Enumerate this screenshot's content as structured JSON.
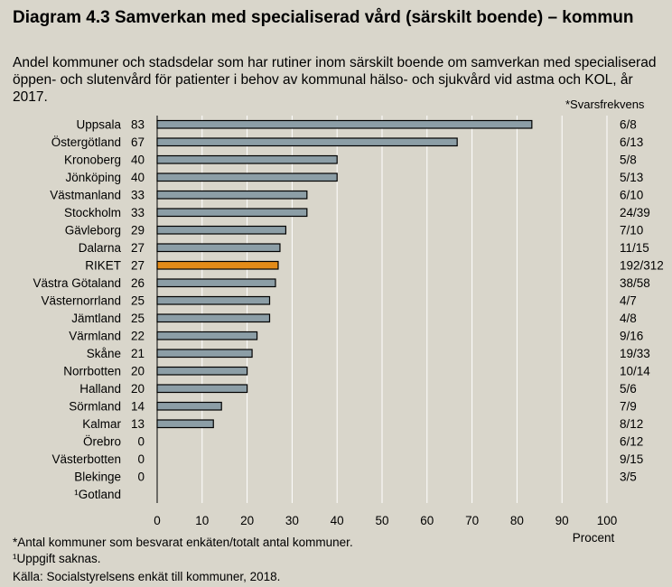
{
  "title": "Diagram 4.3 Samverkan med specialiserad vård (särskilt boende) – kommun",
  "subtitle": "Andel kommuner och stadsdelar som har rutiner inom särskilt boende om samverkan med specialiserad öppen- och slutenvård för patienter i behov av kommunal hälso- och sjukvård vid astma och KOL, år 2017.",
  "freq_header": "*Svarsfrekvens",
  "footnotes": {
    "note1": "*Antal kommuner som besvarat enkäten/totalt antal kommuner.",
    "note2": "¹Uppgift saknas.",
    "source": "Källa:  Socialstyrelsens enkät till kommuner, 2018."
  },
  "colors": {
    "bar": "#8c9ea6",
    "highlight": "#e38b18",
    "background": "#d9d6cb"
  },
  "chart_data": {
    "type": "bar",
    "orientation": "horizontal",
    "xlabel": "Procent",
    "xlim": [
      0,
      100
    ],
    "xticks": [
      0,
      10,
      20,
      30,
      40,
      50,
      60,
      70,
      80,
      90,
      100
    ],
    "grid": true,
    "highlight_category": "RIKET",
    "categories": [
      "Uppsala",
      "Östergötland",
      "Kronoberg",
      "Jönköping",
      "Västmanland",
      "Stockholm",
      "Gävleborg",
      "Dalarna",
      "RIKET",
      "Västra Götaland",
      "Västernorrland",
      "Jämtland",
      "Värmland",
      "Skåne",
      "Norrbotten",
      "Halland",
      "Sörmland",
      "Kalmar",
      "Örebro",
      "Västerbotten",
      "Blekinge",
      "¹Gotland"
    ],
    "value_labels": [
      "83",
      "67",
      "40",
      "40",
      "33",
      "33",
      "29",
      "27",
      "27",
      "26",
      "25",
      "25",
      "22",
      "21",
      "20",
      "20",
      "14",
      "13",
      "0",
      "0",
      "0",
      ""
    ],
    "values": [
      83.3,
      66.7,
      40,
      40,
      33.3,
      33.3,
      28.6,
      27.3,
      26.9,
      26.3,
      25,
      25,
      22.2,
      21.1,
      20,
      20,
      14.3,
      12.5,
      0,
      0,
      0,
      null
    ],
    "response_rates": [
      "6/8",
      "6/13",
      "5/8",
      "5/13",
      "6/10",
      "24/39",
      "7/10",
      "11/15",
      "192/312",
      "38/58",
      "4/7",
      "4/8",
      "9/16",
      "19/33",
      "10/14",
      "5/6",
      "7/9",
      "8/12",
      "6/12",
      "9/15",
      "3/5",
      ""
    ]
  }
}
